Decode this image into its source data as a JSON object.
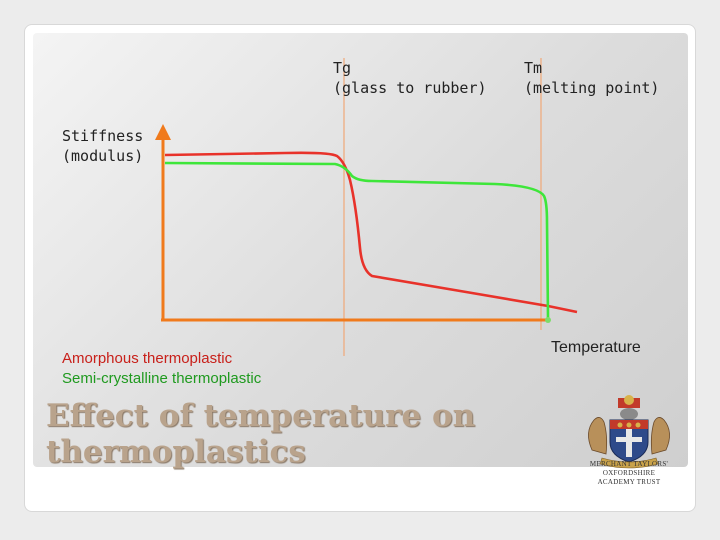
{
  "diagram": {
    "tg_label_line1": "Tg",
    "tg_label_line2": "(glass to rubber)",
    "tm_label_line1": "Tm",
    "tm_label_line2": "(melting point)",
    "y_axis_label_line1": "Stiffness",
    "y_axis_label_line2": "(modulus)",
    "x_axis_label": "Temperature",
    "legend_amorphous": "Amorphous thermoplastic",
    "legend_semicrystalline": "Semi-crystalline thermoplastic"
  },
  "colors": {
    "amorphous": "#e8322a",
    "semicrystalline": "#3ee63a",
    "axes": "#f07a1c",
    "reference_lines": "#f0a878",
    "title": "#b9a38c"
  },
  "title_line1": "Effect of temperature on",
  "title_line2": "thermoplastics",
  "logo": {
    "text_line1": "MERCHANT TAYLORS'",
    "text_line2": "OXFORDSHIRE",
    "text_line3": "ACADEMY TRUST",
    "icon": "coat-of-arms-icon"
  }
}
